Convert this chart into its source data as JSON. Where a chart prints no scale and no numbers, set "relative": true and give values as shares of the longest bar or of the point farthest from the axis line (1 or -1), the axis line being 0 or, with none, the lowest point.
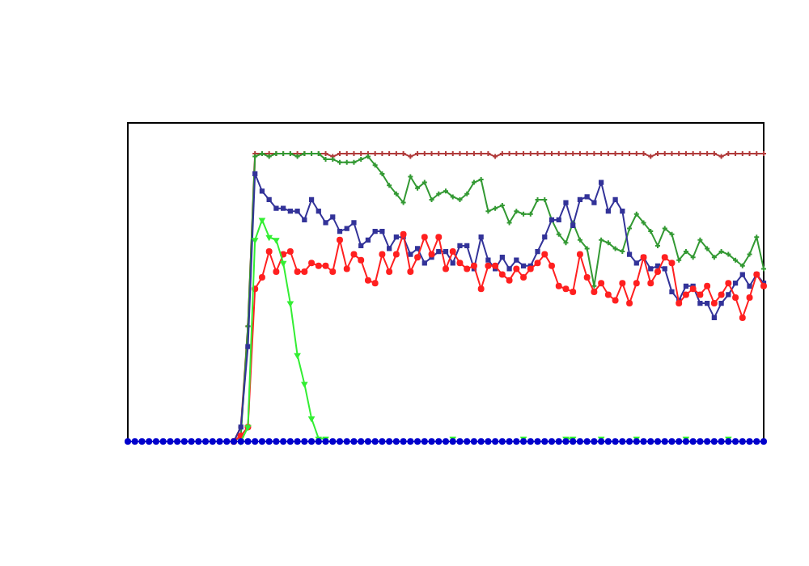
{
  "chart_data": {
    "type": "line",
    "relative": true,
    "legend": false,
    "grid": false,
    "tick_labels": false,
    "categories": [
      null,
      null,
      null,
      null,
      null,
      null,
      null,
      null,
      null,
      null,
      null,
      null,
      null,
      null,
      null,
      null,
      null,
      null,
      null,
      null,
      null,
      null,
      null,
      null,
      null,
      null,
      null,
      null,
      null,
      null,
      null,
      null,
      null,
      null,
      null,
      null,
      null,
      null,
      null,
      null,
      null,
      null,
      null,
      null,
      null,
      null,
      null,
      null,
      null,
      null,
      null,
      null,
      null,
      null,
      null,
      null,
      null,
      null,
      null,
      null,
      null,
      null,
      null,
      null,
      null,
      null,
      null,
      null,
      null,
      null,
      null,
      null,
      null,
      null,
      null,
      null,
      null,
      null,
      null,
      null,
      null,
      null,
      null,
      null,
      null,
      null,
      null,
      null,
      null,
      null,
      null
    ],
    "series": [
      {
        "color": "#b03a3a",
        "marker": "cross",
        "values": [
          null,
          null,
          null,
          null,
          null,
          null,
          null,
          null,
          null,
          null,
          null,
          null,
          null,
          null,
          null,
          0,
          0.05,
          0.4,
          1,
          1,
          1,
          1,
          1,
          1,
          1,
          1,
          1,
          1,
          1,
          0.99,
          1,
          1,
          1,
          1,
          1,
          1,
          1,
          1,
          1,
          1,
          0.99,
          1,
          1,
          1,
          1,
          1,
          1,
          1,
          1,
          1,
          1,
          1,
          0.99,
          1,
          1,
          1,
          1,
          1,
          1,
          1,
          1,
          1,
          1,
          1,
          1,
          1,
          1,
          1,
          1,
          1,
          1,
          1,
          1,
          1,
          0.99,
          1,
          1,
          1,
          1,
          1,
          1,
          1,
          1,
          1,
          0.99,
          1,
          1,
          1,
          1,
          1,
          1
        ]
      },
      {
        "color": "#339933",
        "marker": "cross",
        "values": [
          null,
          null,
          null,
          null,
          null,
          null,
          null,
          null,
          null,
          null,
          null,
          null,
          null,
          null,
          null,
          0,
          0.02,
          0.4,
          0.99,
          1,
          0.99,
          1,
          1,
          1,
          0.99,
          1,
          1,
          1,
          0.98,
          0.98,
          0.97,
          0.97,
          0.97,
          0.98,
          0.99,
          0.96,
          0.93,
          0.89,
          0.86,
          0.83,
          0.92,
          0.88,
          0.9,
          0.84,
          0.86,
          0.87,
          0.85,
          0.84,
          0.86,
          0.9,
          0.91,
          0.8,
          0.81,
          0.82,
          0.76,
          0.8,
          0.79,
          0.79,
          0.84,
          0.84,
          0.77,
          0.72,
          0.69,
          0.76,
          0.7,
          0.67,
          0.54,
          0.7,
          0.69,
          0.67,
          0.66,
          0.74,
          0.79,
          0.76,
          0.73,
          0.68,
          0.74,
          0.72,
          0.63,
          0.66,
          0.64,
          0.7,
          0.67,
          0.64,
          0.66,
          0.65,
          0.63,
          0.61,
          0.65,
          0.71,
          0.6
        ]
      },
      {
        "color": "#333399",
        "marker": "square",
        "values": [
          null,
          null,
          null,
          null,
          null,
          null,
          null,
          null,
          null,
          null,
          null,
          null,
          null,
          null,
          null,
          0,
          0.05,
          0.33,
          0.93,
          0.87,
          0.84,
          0.81,
          0.81,
          0.8,
          0.8,
          0.77,
          0.84,
          0.8,
          0.76,
          0.78,
          0.73,
          0.74,
          0.76,
          0.68,
          0.7,
          0.73,
          0.73,
          0.67,
          0.71,
          0.71,
          0.65,
          0.67,
          0.62,
          0.64,
          0.66,
          0.66,
          0.62,
          0.68,
          0.68,
          0.6,
          0.71,
          0.63,
          0.6,
          0.64,
          0.6,
          0.63,
          0.61,
          0.61,
          0.66,
          0.71,
          0.77,
          0.77,
          0.83,
          0.75,
          0.84,
          0.85,
          0.83,
          0.9,
          0.8,
          0.84,
          0.8,
          0.65,
          0.62,
          0.64,
          0.6,
          0.61,
          0.6,
          0.52,
          0.49,
          0.54,
          0.54,
          0.48,
          0.48,
          0.43,
          0.48,
          0.51,
          0.55,
          0.58,
          0.54,
          0.58,
          0.55
        ]
      },
      {
        "color": "#ff2020",
        "marker": "circle",
        "values": [
          null,
          null,
          null,
          null,
          null,
          null,
          null,
          null,
          null,
          null,
          null,
          null,
          null,
          null,
          null,
          0,
          0.02,
          0.05,
          0.53,
          0.57,
          0.66,
          0.59,
          0.65,
          0.66,
          0.59,
          0.59,
          0.62,
          0.61,
          0.61,
          0.59,
          0.7,
          0.6,
          0.65,
          0.63,
          0.56,
          0.55,
          0.65,
          0.59,
          0.65,
          0.72,
          0.59,
          0.64,
          0.71,
          0.65,
          0.71,
          0.6,
          0.66,
          0.62,
          0.6,
          0.61,
          0.53,
          0.61,
          0.61,
          0.58,
          0.56,
          0.6,
          0.57,
          0.6,
          0.62,
          0.65,
          0.61,
          0.54,
          0.53,
          0.52,
          0.65,
          0.57,
          0.52,
          0.55,
          0.51,
          0.49,
          0.55,
          0.48,
          0.55,
          0.64,
          0.55,
          0.59,
          0.64,
          0.62,
          0.48,
          0.51,
          0.53,
          0.51,
          0.54,
          0.48,
          0.51,
          0.55,
          0.5,
          0.43,
          0.5,
          0.58,
          0.54
        ]
      },
      {
        "color": "#33ee33",
        "marker": "triangle",
        "values": [
          null,
          null,
          null,
          null,
          null,
          null,
          null,
          null,
          null,
          null,
          null,
          null,
          null,
          null,
          null,
          null,
          0,
          0.05,
          0.7,
          0.77,
          0.71,
          0.7,
          0.62,
          0.48,
          0.3,
          0.2,
          0.08,
          0.01,
          0.01,
          null,
          null,
          null,
          null,
          null,
          null,
          null,
          null,
          null,
          null,
          null,
          null,
          null,
          null,
          null,
          null,
          null,
          0.01,
          null,
          null,
          null,
          null,
          null,
          null,
          null,
          null,
          null,
          0.01,
          null,
          null,
          null,
          null,
          null,
          0.01,
          0.01,
          null,
          null,
          null,
          0.01,
          null,
          null,
          null,
          null,
          0.01,
          null,
          null,
          null,
          null,
          null,
          null,
          0.01,
          null,
          null,
          null,
          null,
          null,
          0.01,
          null,
          null,
          null,
          null,
          null
        ]
      },
      {
        "color": "#0000cc",
        "marker": "circle",
        "values": [
          0,
          0,
          0,
          0,
          0,
          0,
          0,
          0,
          0,
          0,
          0,
          0,
          0,
          0,
          0,
          0,
          0,
          0,
          0,
          0,
          0,
          0,
          0,
          0,
          0,
          0,
          0,
          0,
          0,
          0,
          0,
          0,
          0,
          0,
          0,
          0,
          0,
          0,
          0,
          0,
          0,
          0,
          0,
          0,
          0,
          0,
          0,
          0,
          0,
          0,
          0,
          0,
          0,
          0,
          0,
          0,
          0,
          0,
          0,
          0,
          0,
          0,
          0,
          0,
          0,
          0,
          0,
          0,
          0,
          0,
          0,
          0,
          0,
          0,
          0,
          0,
          0,
          0,
          0,
          0,
          0,
          0,
          0,
          0,
          0,
          0,
          0,
          0,
          0,
          0,
          0
        ]
      }
    ]
  }
}
